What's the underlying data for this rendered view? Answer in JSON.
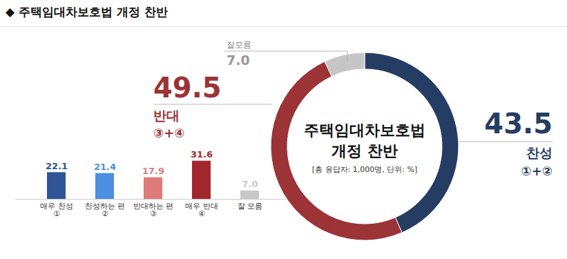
{
  "title": "◆ 주택임대차보호법 개정 찬반",
  "chart_data": [
    {
      "type": "bar",
      "categories": [
        "매우 찬성\n①",
        "찬성하는 편\n②",
        "반대하는 편\n③",
        "매우 반대\n④",
        "잘 모름"
      ],
      "values": [
        22.1,
        21.4,
        17.9,
        31.6,
        7.0
      ],
      "value_labels": [
        "22.1",
        "21.4",
        "17.9",
        "31.6",
        "7.0"
      ],
      "colors": [
        "#2f5597",
        "#4a8fe0",
        "#e07a7a",
        "#a3282e",
        "#c8c8c8"
      ],
      "ylim": [
        0,
        40
      ],
      "data_labels": true,
      "tick_labels": "x"
    },
    {
      "type": "pie",
      "title": "주택임대차보호법\n개정 찬반",
      "subtitle": "[총 응답자: 1,000명, 단위: %]",
      "categories": [
        "찬성",
        "반대",
        "잘모름"
      ],
      "values": [
        43.5,
        49.5,
        7.0
      ],
      "value_labels": [
        "43.5",
        "49.5",
        "7.0"
      ],
      "colors": [
        "#263d63",
        "#9c3336",
        "#c6c6c6"
      ],
      "annotations": [
        {
          "category": "찬성",
          "text": "①+②"
        },
        {
          "category": "반대",
          "text": "③+④"
        }
      ],
      "data_labels": true
    }
  ]
}
